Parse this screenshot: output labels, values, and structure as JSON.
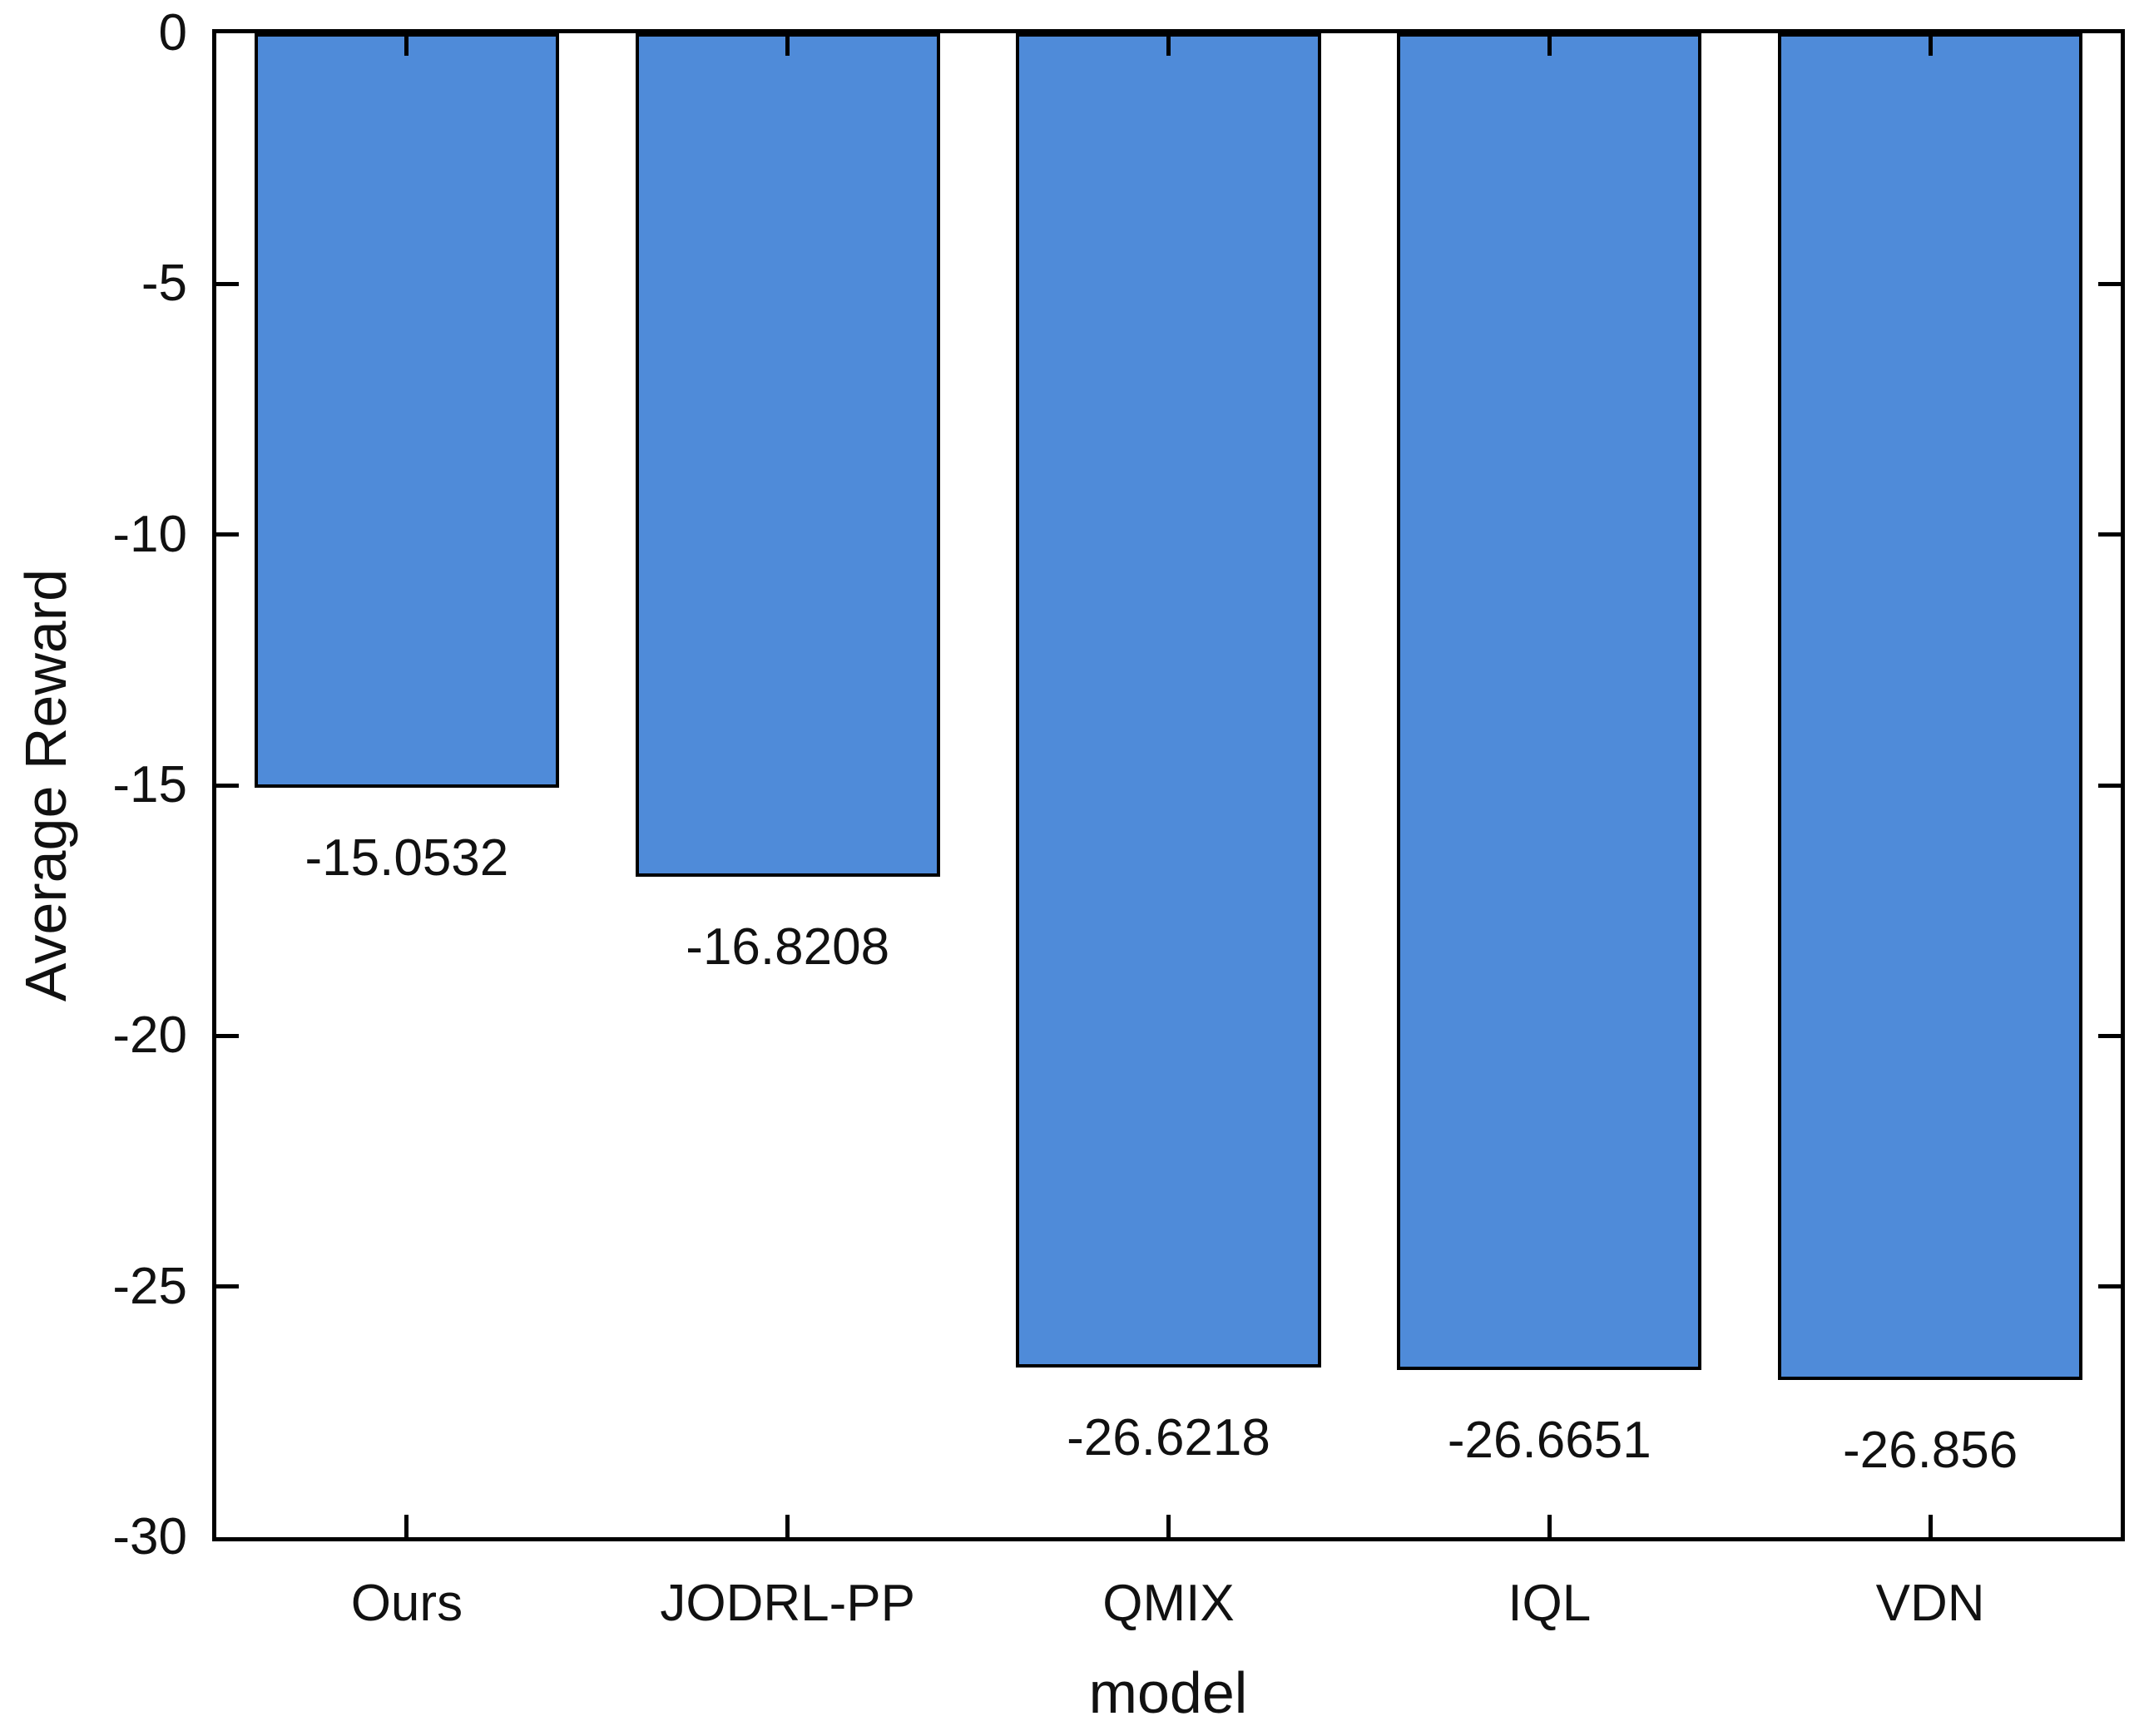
{
  "chart_data": {
    "type": "bar",
    "title": "",
    "xlabel": "model",
    "ylabel": "Average Reward",
    "categories": [
      "Ours",
      "JODRL-PP",
      "QMIX",
      "IQL",
      "VDN"
    ],
    "values": [
      -15.0532,
      -16.8208,
      -26.6218,
      -26.6651,
      -26.856
    ],
    "value_labels": [
      "-15.0532",
      "-16.8208",
      "-26.6218",
      "-26.6651",
      "-26.856"
    ],
    "ylim": [
      -30,
      0
    ],
    "yticks": [
      0,
      -5,
      -10,
      -15,
      -20,
      -25,
      -30
    ],
    "ytick_labels": [
      "0",
      "-5",
      "-10",
      "-15",
      "-20",
      "-25",
      "-30"
    ],
    "bar_width_fraction": 0.8,
    "bar_color": "#4f8bd9",
    "bar_edge_color": "#000000",
    "axis_color": "#000000",
    "text_color": "#111111",
    "grid": false,
    "legend": null,
    "box": true,
    "tick_direction": "in"
  }
}
